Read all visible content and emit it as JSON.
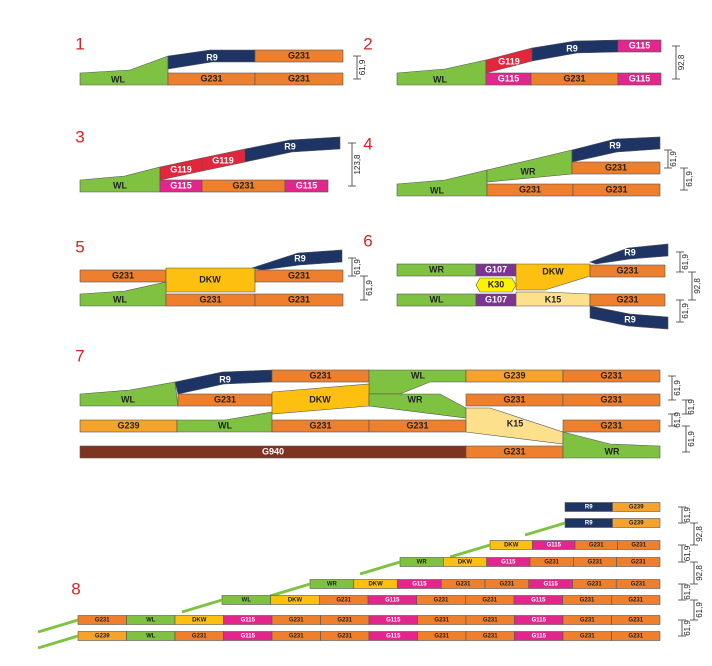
{
  "panels": [
    {
      "number": "1",
      "pieces": [
        {
          "label": "WL",
          "color": "#7fc241"
        },
        {
          "label": "R9",
          "color": "#1d3465"
        },
        {
          "label": "G231",
          "color": "#ee7f2d"
        },
        {
          "label": "G231",
          "color": "#ee7f2d"
        },
        {
          "label": "G231",
          "color": "#ee7f2d"
        }
      ],
      "dims": [
        "61,9"
      ]
    },
    {
      "number": "2",
      "pieces": [
        {
          "label": "WL",
          "color": "#7fc241"
        },
        {
          "label": "G119",
          "color": "#e3263b"
        },
        {
          "label": "R9",
          "color": "#1d3465"
        },
        {
          "label": "G115",
          "color": "#e2268c"
        },
        {
          "label": "G115",
          "color": "#e2268c"
        },
        {
          "label": "G231",
          "color": "#ee7f2d"
        },
        {
          "label": "G115",
          "color": "#e2268c"
        }
      ],
      "dims": [
        "92,8"
      ]
    },
    {
      "number": "3",
      "pieces": [
        {
          "label": "WL",
          "color": "#7fc241"
        },
        {
          "label": "G119",
          "color": "#e3263b"
        },
        {
          "label": "G119",
          "color": "#e3263b"
        },
        {
          "label": "R9",
          "color": "#1d3465"
        },
        {
          "label": "G115",
          "color": "#e2268c"
        },
        {
          "label": "G231",
          "color": "#ee7f2d"
        },
        {
          "label": "G115",
          "color": "#e2268c"
        }
      ],
      "dims": [
        "123,8"
      ]
    },
    {
      "number": "4",
      "pieces": [
        {
          "label": "WL",
          "color": "#7fc241"
        },
        {
          "label": "WR",
          "color": "#7fc241"
        },
        {
          "label": "R9",
          "color": "#1d3465"
        },
        {
          "label": "G231",
          "color": "#ee7f2d"
        },
        {
          "label": "G231",
          "color": "#ee7f2d"
        },
        {
          "label": "G231",
          "color": "#ee7f2d"
        }
      ],
      "dims": [
        "61,9",
        "61,9"
      ]
    },
    {
      "number": "5",
      "pieces": [
        {
          "label": "G231",
          "color": "#ee7f2d"
        },
        {
          "label": "DKW",
          "color": "#fdc010"
        },
        {
          "label": "R9",
          "color": "#1d3465"
        },
        {
          "label": "G231",
          "color": "#ee7f2d"
        },
        {
          "label": "WL",
          "color": "#7fc241"
        },
        {
          "label": "G231",
          "color": "#ee7f2d"
        },
        {
          "label": "G231",
          "color": "#ee7f2d"
        }
      ],
      "dims": [
        "61,9",
        "61,9"
      ]
    },
    {
      "number": "6",
      "pieces": [
        {
          "label": "R9",
          "color": "#1d3465"
        },
        {
          "label": "WR",
          "color": "#7fc241"
        },
        {
          "label": "G107",
          "color": "#7b3590"
        },
        {
          "label": "DKW",
          "color": "#fdc010"
        },
        {
          "label": "G231",
          "color": "#ee7f2d"
        },
        {
          "label": "K30",
          "color": "#fff200"
        },
        {
          "label": "WL",
          "color": "#7fc241"
        },
        {
          "label": "G107",
          "color": "#7b3590"
        },
        {
          "label": "K15",
          "color": "#fde08c"
        },
        {
          "label": "G231",
          "color": "#ee7f2d"
        },
        {
          "label": "R9",
          "color": "#1d3465"
        }
      ],
      "dims": [
        "61,9",
        "92,8",
        "61,9"
      ]
    },
    {
      "number": "7",
      "pieces": [
        {
          "label": "R9",
          "color": "#1d3465"
        },
        {
          "label": "G231",
          "color": "#ee7f2d"
        },
        {
          "label": "WL",
          "color": "#7fc241"
        },
        {
          "label": "G239",
          "color": "#f6a32c"
        },
        {
          "label": "G231",
          "color": "#ee7f2d"
        },
        {
          "label": "WL",
          "color": "#7fc241"
        },
        {
          "label": "G231",
          "color": "#ee7f2d"
        },
        {
          "label": "DKW",
          "color": "#fdc010"
        },
        {
          "label": "WR",
          "color": "#7fc241"
        },
        {
          "label": "G231",
          "color": "#ee7f2d"
        },
        {
          "label": "G231",
          "color": "#ee7f2d"
        },
        {
          "label": "G239",
          "color": "#f6a32c"
        },
        {
          "label": "WL",
          "color": "#7fc241"
        },
        {
          "label": "G231",
          "color": "#ee7f2d"
        },
        {
          "label": "G231",
          "color": "#ee7f2d"
        },
        {
          "label": "K15",
          "color": "#fde08c"
        },
        {
          "label": "G231",
          "color": "#ee7f2d"
        },
        {
          "label": "G940",
          "color": "#7d3421"
        },
        {
          "label": "G231",
          "color": "#ee7f2d"
        },
        {
          "label": "WR",
          "color": "#7fc241"
        }
      ],
      "dims": [
        "61,9",
        "61,9",
        "61,9",
        "61,9"
      ]
    },
    {
      "number": "8",
      "rows": [
        {
          "pieces": [
            {
              "label": "R9",
              "color": "#1d3465"
            },
            {
              "label": "G239",
              "color": "#f6a32c"
            }
          ]
        },
        {
          "pieces": [
            {
              "label": "R9",
              "color": "#1d3465"
            },
            {
              "label": "G239",
              "color": "#f6a32c"
            }
          ]
        },
        {
          "pieces": [
            {
              "label": "DKW",
              "color": "#fdc010"
            },
            {
              "label": "G115",
              "color": "#e2268c"
            },
            {
              "label": "G231",
              "color": "#ee7f2d"
            },
            {
              "label": "G231",
              "color": "#ee7f2d"
            }
          ]
        },
        {
          "pieces": [
            {
              "label": "WR",
              "color": "#7fc241"
            },
            {
              "label": "DKW",
              "color": "#fdc010"
            },
            {
              "label": "G115",
              "color": "#e2268c"
            },
            {
              "label": "G231",
              "color": "#ee7f2d"
            },
            {
              "label": "G231",
              "color": "#ee7f2d"
            },
            {
              "label": "G231",
              "color": "#ee7f2d"
            }
          ]
        },
        {
          "pieces": [
            {
              "label": "WR",
              "color": "#7fc241"
            },
            {
              "label": "DKW",
              "color": "#fdc010"
            },
            {
              "label": "G115",
              "color": "#e2268c"
            },
            {
              "label": "G231",
              "color": "#ee7f2d"
            },
            {
              "label": "G231",
              "color": "#ee7f2d"
            },
            {
              "label": "G115",
              "color": "#e2268c"
            },
            {
              "label": "G231",
              "color": "#ee7f2d"
            },
            {
              "label": "G231",
              "color": "#ee7f2d"
            }
          ]
        },
        {
          "pieces": [
            {
              "label": "WL",
              "color": "#7fc241"
            },
            {
              "label": "DKW",
              "color": "#fdc010"
            },
            {
              "label": "G231",
              "color": "#ee7f2d"
            },
            {
              "label": "G115",
              "color": "#e2268c"
            },
            {
              "label": "G231",
              "color": "#ee7f2d"
            },
            {
              "label": "G231",
              "color": "#ee7f2d"
            },
            {
              "label": "G115",
              "color": "#e2268c"
            },
            {
              "label": "G231",
              "color": "#ee7f2d"
            },
            {
              "label": "G231",
              "color": "#ee7f2d"
            }
          ]
        },
        {
          "pieces": [
            {
              "label": "G231",
              "color": "#ee7f2d"
            },
            {
              "label": "WL",
              "color": "#7fc241"
            },
            {
              "label": "DKW",
              "color": "#fdc010"
            },
            {
              "label": "G115",
              "color": "#e2268c"
            },
            {
              "label": "G231",
              "color": "#ee7f2d"
            },
            {
              "label": "G231",
              "color": "#ee7f2d"
            },
            {
              "label": "G115",
              "color": "#e2268c"
            },
            {
              "label": "G231",
              "color": "#ee7f2d"
            },
            {
              "label": "G231",
              "color": "#ee7f2d"
            },
            {
              "label": "G115",
              "color": "#e2268c"
            },
            {
              "label": "G231",
              "color": "#ee7f2d"
            },
            {
              "label": "G231",
              "color": "#ee7f2d"
            }
          ]
        },
        {
          "pieces": [
            {
              "label": "G239",
              "color": "#f6a32c"
            },
            {
              "label": "WL",
              "color": "#7fc241"
            },
            {
              "label": "G231",
              "color": "#ee7f2d"
            },
            {
              "label": "G115",
              "color": "#e2268c"
            },
            {
              "label": "G231",
              "color": "#ee7f2d"
            },
            {
              "label": "G231",
              "color": "#ee7f2d"
            },
            {
              "label": "G115",
              "color": "#e2268c"
            },
            {
              "label": "G231",
              "color": "#ee7f2d"
            },
            {
              "label": "G231",
              "color": "#ee7f2d"
            },
            {
              "label": "G115",
              "color": "#e2268c"
            },
            {
              "label": "G231",
              "color": "#ee7f2d"
            },
            {
              "label": "G231",
              "color": "#ee7f2d"
            }
          ]
        }
      ],
      "dims": [
        "61,9",
        "92,8",
        "61,9",
        "92,8",
        "61,9",
        "61,9",
        "61,9"
      ]
    }
  ]
}
